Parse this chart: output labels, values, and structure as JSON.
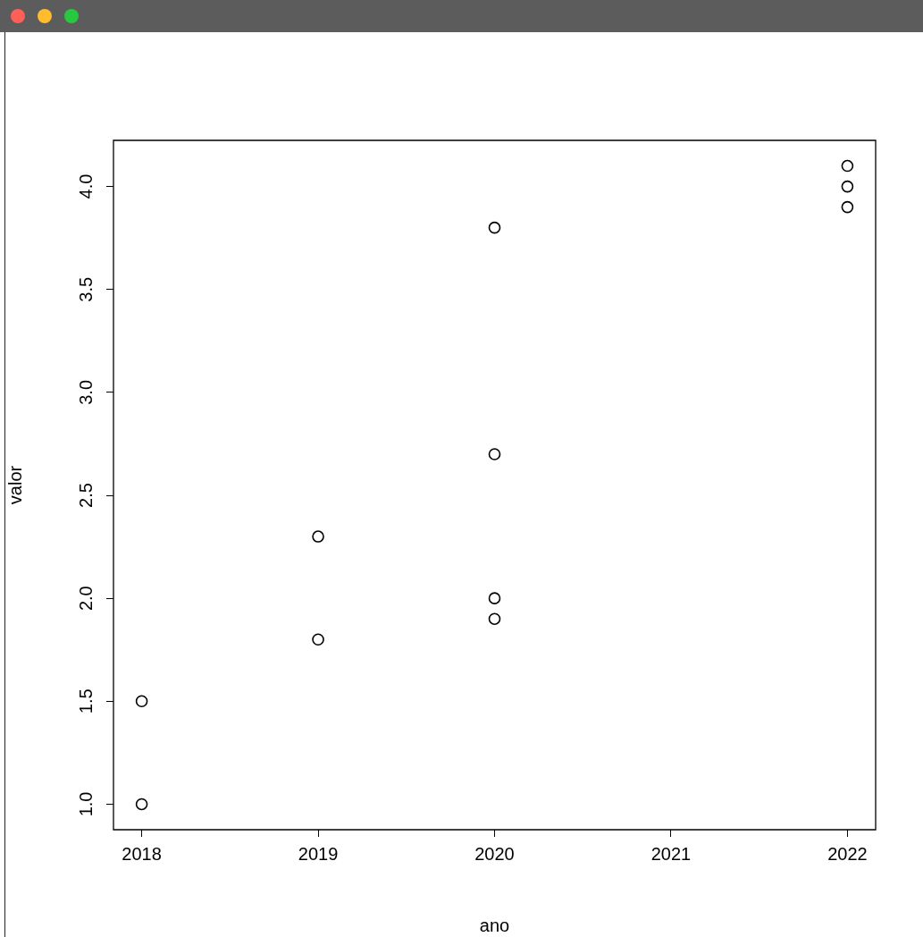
{
  "chart_data": {
    "type": "scatter",
    "xlabel": "ano",
    "ylabel": "valor",
    "x": [
      2018,
      2018,
      2019,
      2019,
      2020,
      2020,
      2020,
      2020,
      2022,
      2022,
      2022
    ],
    "values": [
      1.5,
      1.0,
      2.3,
      1.8,
      3.8,
      2.7,
      2.0,
      1.9,
      4.1,
      4.0,
      3.9
    ],
    "color": "#000000",
    "marker": "circle",
    "xlim": [
      2017.84,
      2022.16
    ],
    "ylim": [
      0.876,
      4.224
    ],
    "xticks": [
      2018,
      2019,
      2020,
      2021,
      2022
    ],
    "yticks": [
      {
        "value": 1,
        "label": "1.0"
      },
      1.5,
      {
        "value": 2,
        "label": "2.0"
      },
      2.5,
      {
        "value": 3,
        "label": "3.0"
      },
      3.5,
      {
        "value": 4,
        "label": "4.0"
      }
    ],
    "grid": false,
    "legend": false
  }
}
